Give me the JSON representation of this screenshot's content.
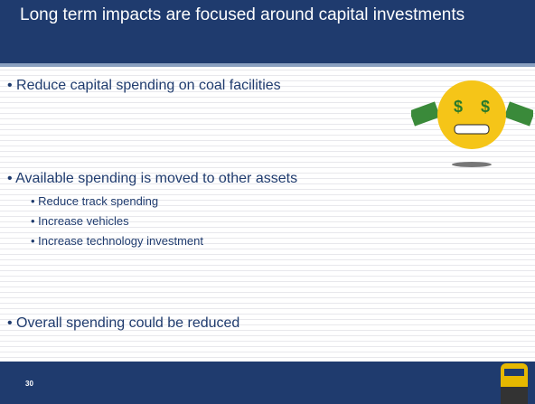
{
  "header": {
    "title": "Long term impacts are focused around capital investments"
  },
  "bullets": [
    {
      "text": "Reduce capital spending on coal facilities",
      "sub": []
    },
    {
      "text": "Available spending is moved to other assets",
      "sub": [
        "Reduce track spending",
        "Increase vehicles",
        "Increase technology investment"
      ]
    },
    {
      "text": "Overall spending could be reduced",
      "sub": []
    }
  ],
  "footer": {
    "page": "30"
  }
}
